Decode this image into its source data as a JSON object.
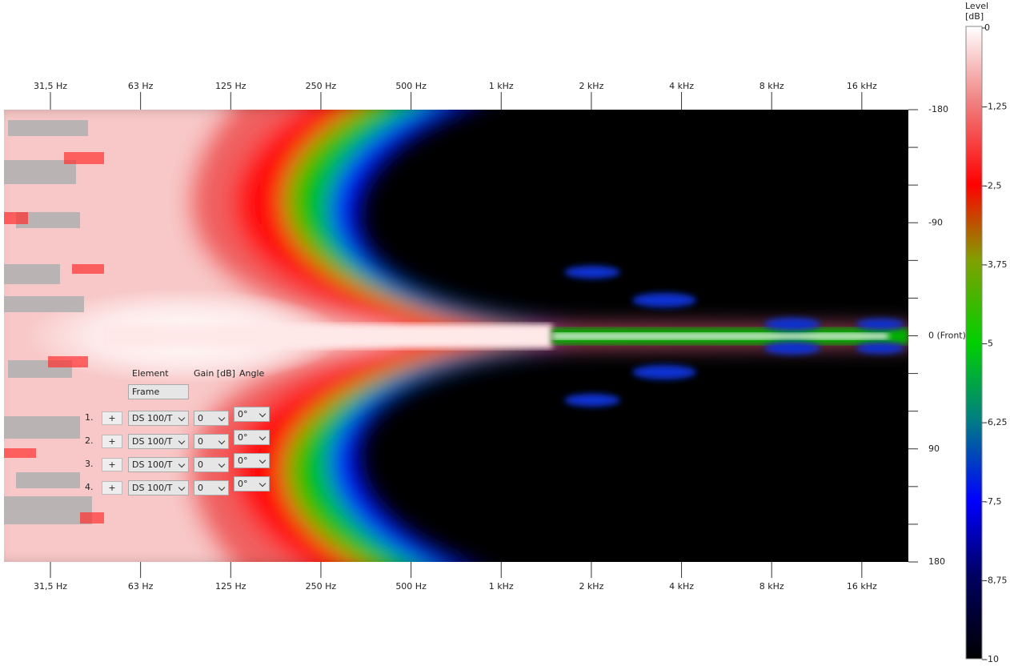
{
  "x_axis": {
    "labels": [
      "31,5 Hz",
      "63 Hz",
      "125 Hz",
      "250 Hz",
      "500 Hz",
      "1 kHz",
      "2 kHz",
      "4 kHz",
      "8 kHz",
      "16 kHz"
    ]
  },
  "y_axis": {
    "labels": [
      "-180",
      "-90",
      "0 (Front)",
      "90",
      "180"
    ]
  },
  "colorbar": {
    "title_lines": [
      "Level",
      "[dB]"
    ],
    "labels": [
      "0",
      "-1,25",
      "-2,5",
      "-3,75",
      "-5",
      "-6,25",
      "-7,5",
      "-8,75",
      "-10"
    ]
  },
  "panel": {
    "headers": [
      "Element",
      "Gain [dB]",
      "Angle"
    ],
    "frame": "Frame",
    "rows": [
      {
        "index": "1.",
        "add": "+",
        "element": "DS 100/T",
        "gain": "0",
        "angle": "0°"
      },
      {
        "index": "2.",
        "add": "+",
        "element": "DS 100/T",
        "gain": "0",
        "angle": "0°"
      },
      {
        "index": "3.",
        "add": "+",
        "element": "DS 100/T",
        "gain": "0",
        "angle": "0°"
      },
      {
        "index": "4.",
        "add": "+",
        "element": "DS 100/T",
        "gain": "0",
        "angle": "0°"
      }
    ]
  }
}
